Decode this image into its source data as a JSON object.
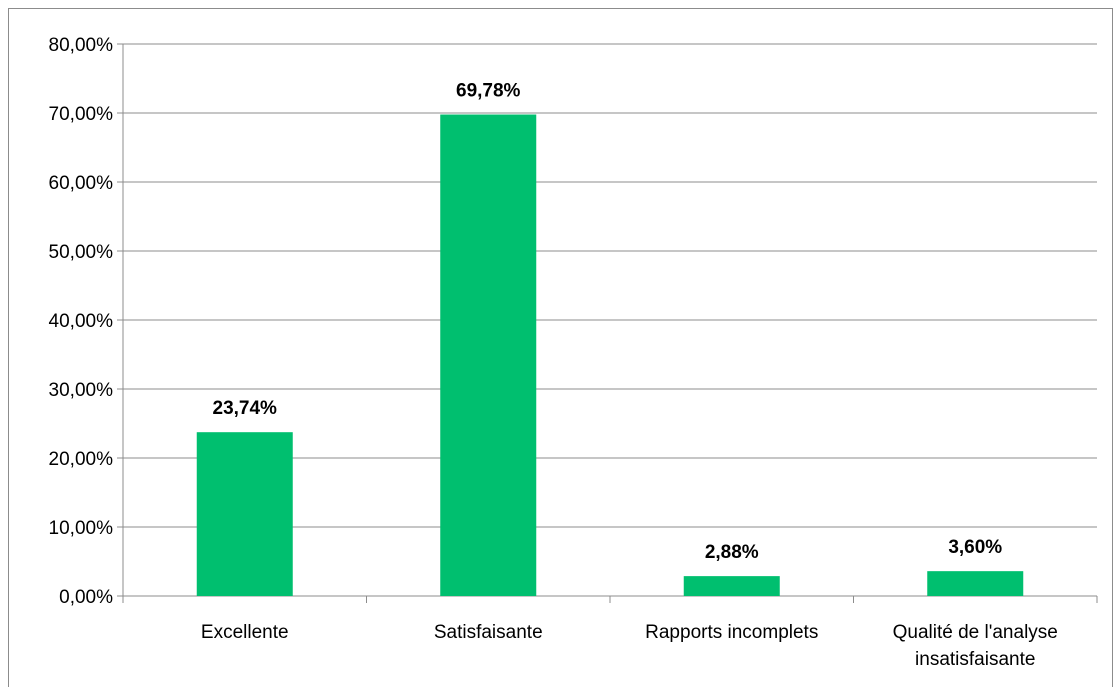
{
  "chart_data": {
    "type": "bar",
    "categories": [
      "Excellente",
      "Satisfaisante",
      "Rapports incomplets",
      "Qualité de l'analyse insatisfaisante"
    ],
    "category_label_lines": [
      [
        "Excellente"
      ],
      [
        "Satisfaisante"
      ],
      [
        "Rapports incomplets"
      ],
      [
        "Qualité de l'analyse",
        "insatisfaisante"
      ]
    ],
    "values": [
      23.74,
      69.78,
      2.88,
      3.6
    ],
    "data_labels": [
      "23,74%",
      "69,78%",
      "2,88%",
      "3,60%"
    ],
    "ylim": [
      0,
      80
    ],
    "y_ticks": [
      0,
      10,
      20,
      30,
      40,
      50,
      60,
      70,
      80
    ],
    "y_tick_labels": [
      "0,00%",
      "10,00%",
      "20,00%",
      "30,00%",
      "40,00%",
      "50,00%",
      "60,00%",
      "70,00%",
      "80,00%"
    ],
    "title": "",
    "xlabel": "",
    "ylabel": "",
    "grid": true,
    "legend": "none",
    "bar_color": "#00bf6f",
    "grid_color": "#8c8c8c"
  }
}
